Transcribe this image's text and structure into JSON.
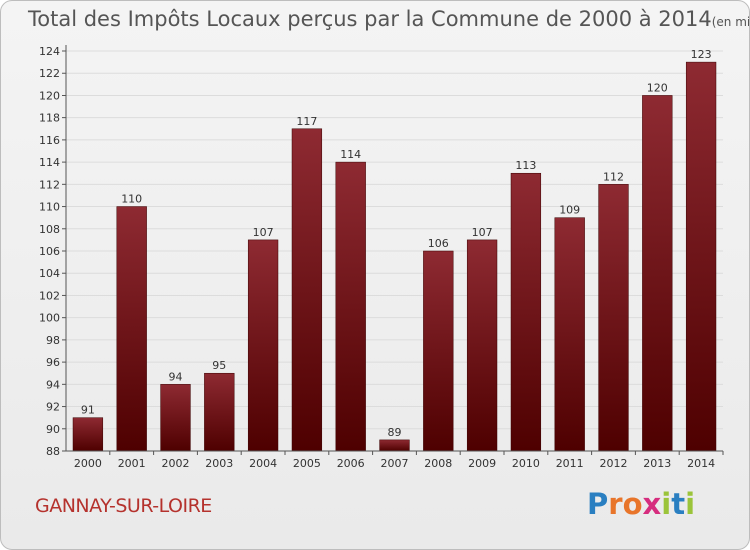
{
  "chart_data": {
    "type": "bar",
    "title": "Total des Impôts Locaux perçus par la Commune de 2000 à 2014",
    "unit": "(en milliers d'€)",
    "categories": [
      "2000",
      "2001",
      "2002",
      "2003",
      "2004",
      "2005",
      "2006",
      "2007",
      "2008",
      "2009",
      "2010",
      "2011",
      "2012",
      "2013",
      "2014"
    ],
    "values": [
      91,
      110,
      94,
      95,
      107,
      117,
      114,
      89,
      106,
      107,
      113,
      109,
      112,
      120,
      123
    ],
    "ylim": [
      88,
      124
    ],
    "yticks": [
      88,
      90,
      92,
      94,
      96,
      98,
      100,
      102,
      104,
      106,
      108,
      110,
      112,
      114,
      116,
      118,
      120,
      122,
      124
    ],
    "grid": true,
    "xlabel": "",
    "ylabel": ""
  },
  "commune_name": "GANNAY-SUR-LOIRE",
  "logo": {
    "letters": [
      "P",
      "r",
      "o",
      "x",
      "i",
      "t",
      "i"
    ],
    "colors": [
      "#2a7fc1",
      "#e8752a",
      "#e8752a",
      "#d62d7e",
      "#9bc43a",
      "#2a7fc1",
      "#9bc43a"
    ]
  },
  "colors": {
    "bar_top": "#8e2a32",
    "bar_bottom": "#4e0000",
    "grid": "#dcdcdc"
  }
}
